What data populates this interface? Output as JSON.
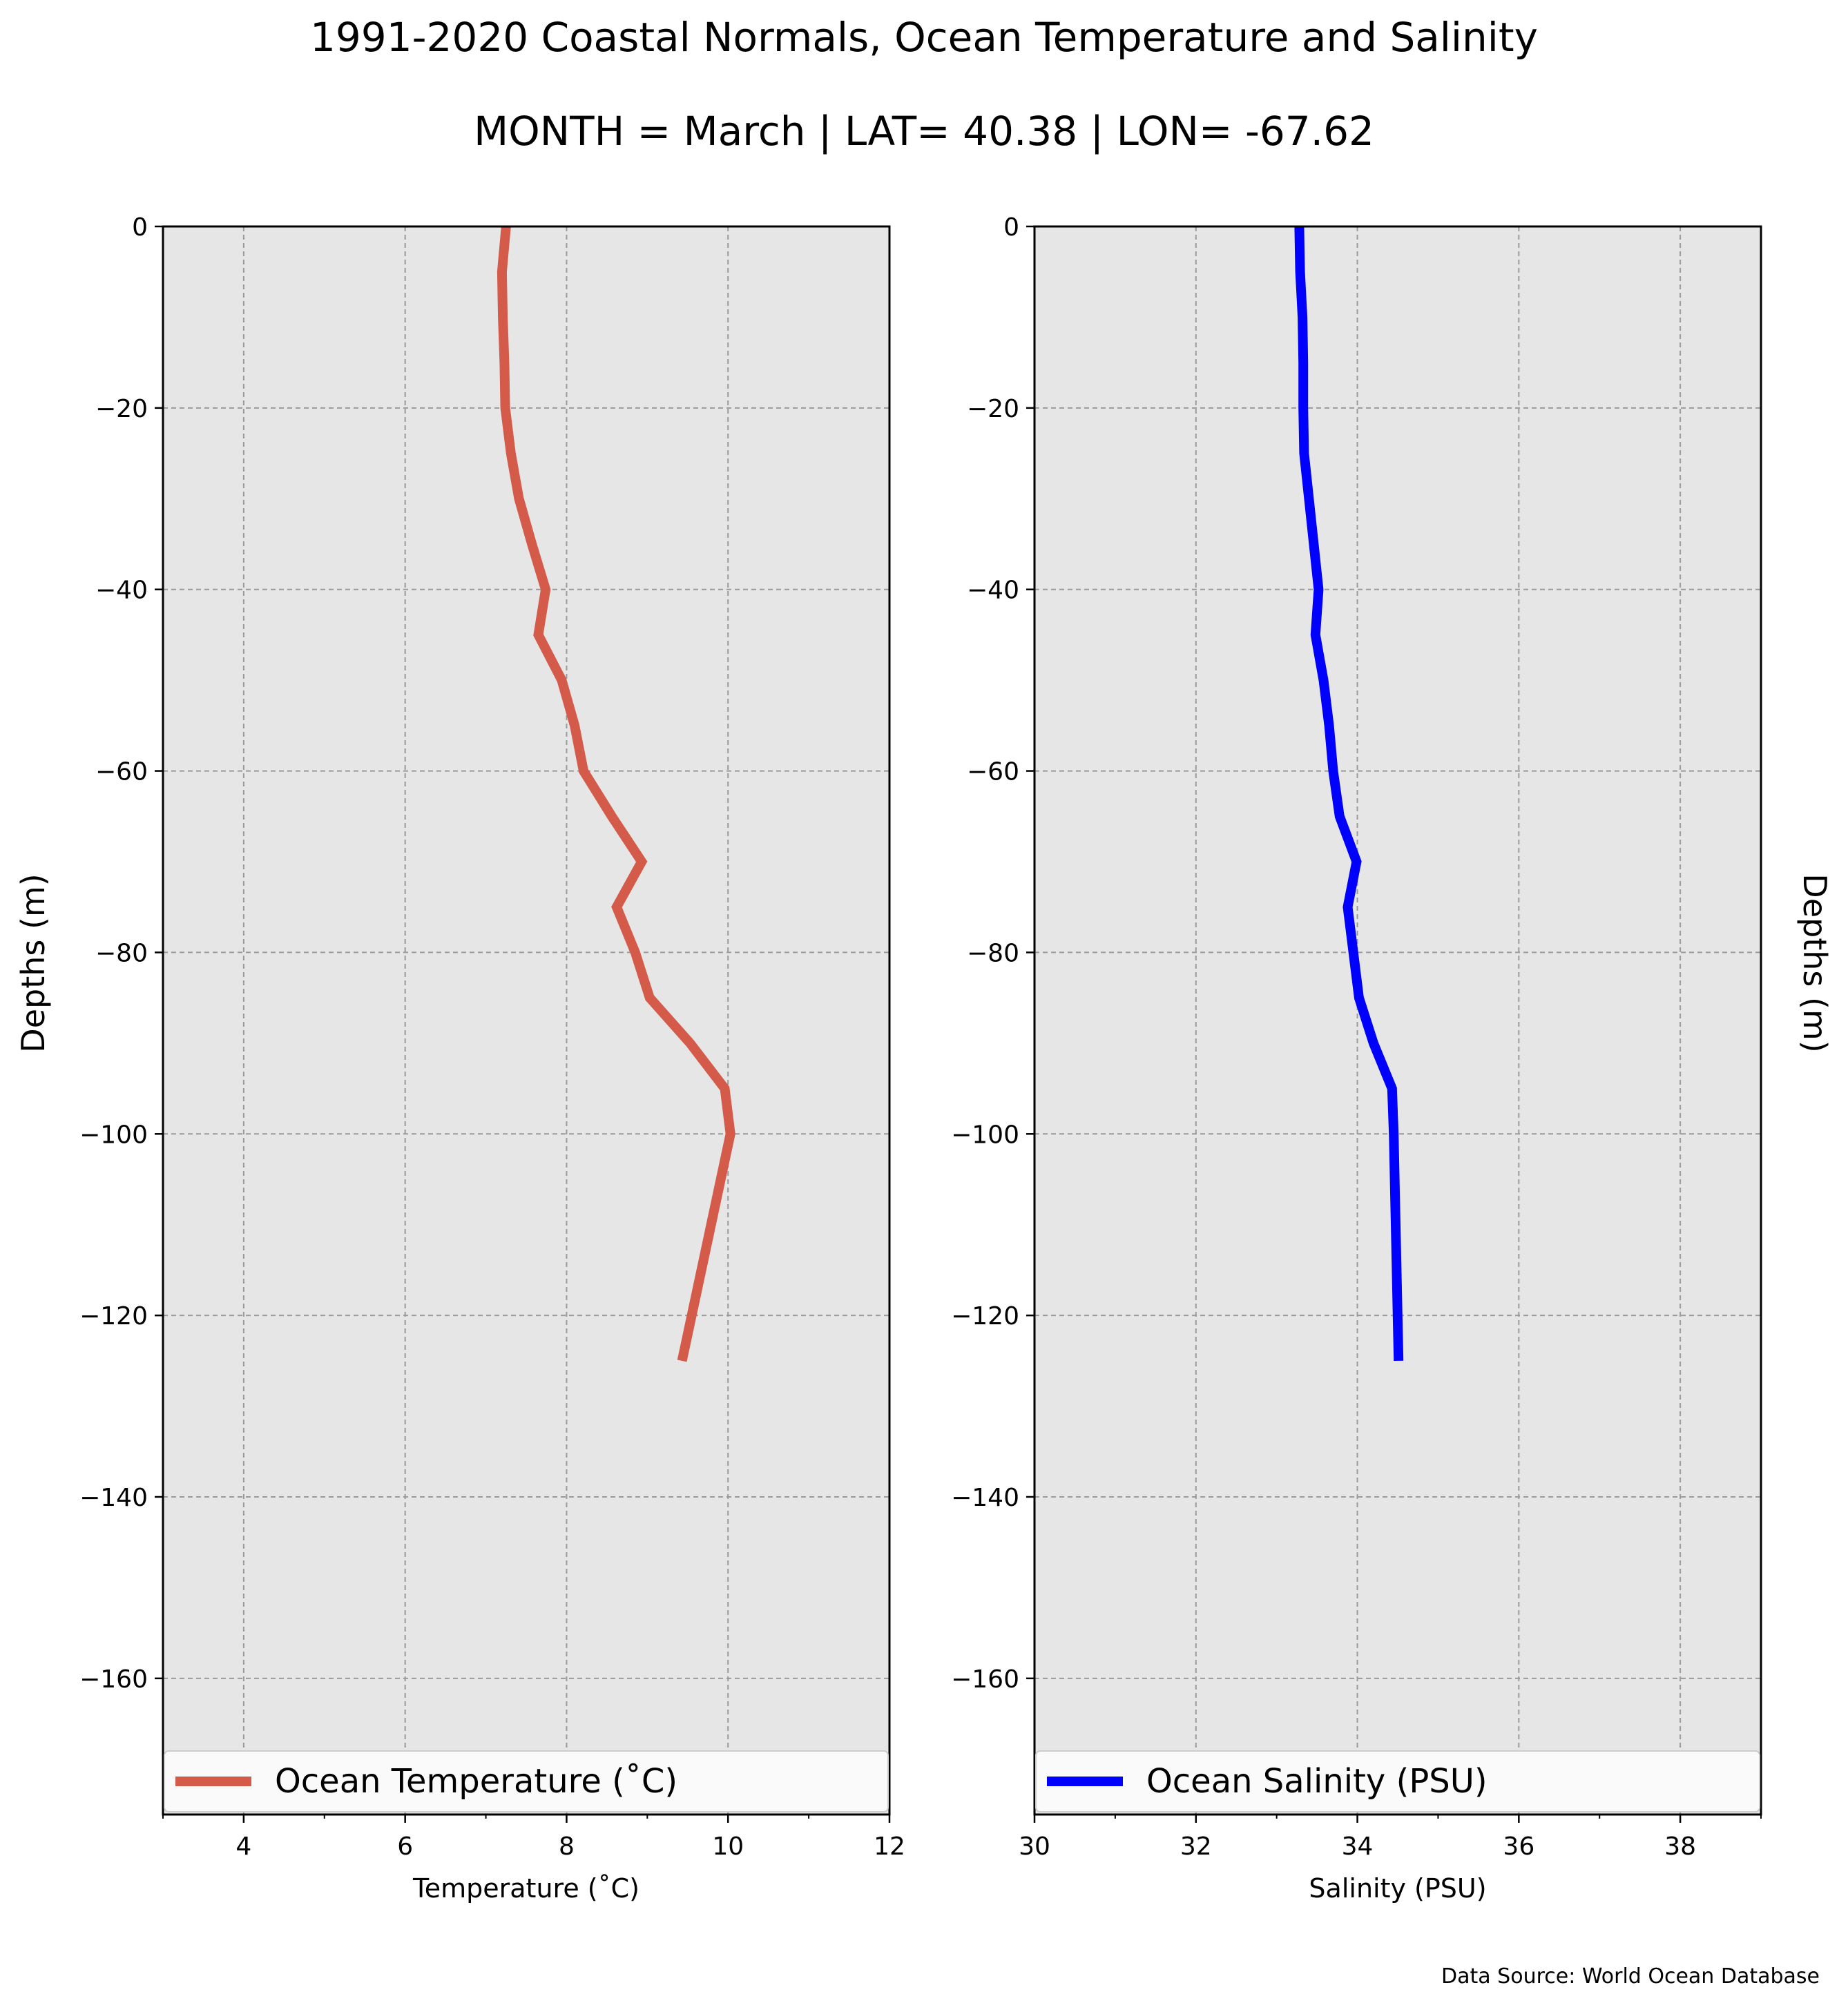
{
  "title": "1991-2020 Coastal Normals, Ocean Temperature and Salinity",
  "subtitle": "MONTH = March | LAT= 40.38 | LON= -67.62",
  "source": "Data Source: World Ocean Database",
  "colors": {
    "plot_background": "#e6e6e6",
    "grid": "#9a9a9a",
    "temperature_line": "#d45a4a",
    "salinity_line": "#0000ff"
  },
  "chart_data": [
    {
      "type": "line",
      "name": "temperature",
      "series": [
        {
          "name": "Ocean Temperature ($^\\circ$C)",
          "legend_label": "Ocean Temperature (˚C)",
          "x": [
            7.25,
            7.2,
            7.21,
            7.23,
            7.24,
            7.24,
            7.31,
            7.41,
            7.57,
            7.74,
            7.65,
            7.94,
            8.1,
            8.21,
            8.56,
            8.93,
            8.62,
            8.85,
            9.03,
            9.53,
            9.96,
            10.03,
            9.43
          ],
          "y": [
            0,
            -5,
            -10,
            -15,
            -20,
            -20,
            -25,
            -30,
            -35,
            -40,
            -45,
            -50,
            -55,
            -60,
            -65,
            -70,
            -75,
            -80,
            -85,
            -90,
            -95,
            -100,
            -125
          ]
        }
      ],
      "xlabel": "Temperature (˚C)",
      "ylabel": "Depths (m)",
      "xlim": [
        3,
        12
      ],
      "ylim": [
        -175,
        0
      ],
      "xticks": [
        4,
        6,
        8,
        10,
        12
      ],
      "xtick_labels": [
        "4",
        "6",
        "8",
        "10",
        "12"
      ],
      "yticks": [
        0,
        -20,
        -40,
        -60,
        -80,
        -100,
        -120,
        -140,
        -160
      ],
      "ytick_labels": [
        "0",
        "−20",
        "−40",
        "−60",
        "−80",
        "−100",
        "−120",
        "−140",
        "−160"
      ],
      "grid": true,
      "legend_placement": "lower center"
    },
    {
      "type": "line",
      "name": "salinity",
      "series": [
        {
          "name": "Ocean Salinity (PSU)",
          "legend_label": "Ocean Salinity (PSU)",
          "x": [
            33.28,
            33.29,
            33.32,
            33.33,
            33.33,
            33.33,
            33.34,
            33.4,
            33.46,
            33.52,
            33.48,
            33.58,
            33.65,
            33.7,
            33.78,
            33.99,
            33.88,
            33.95,
            34.02,
            34.2,
            34.43,
            34.45,
            34.51
          ],
          "y": [
            0,
            -5,
            -10,
            -15,
            -20,
            -20,
            -25,
            -30,
            -35,
            -40,
            -45,
            -50,
            -55,
            -60,
            -65,
            -70,
            -75,
            -80,
            -85,
            -90,
            -95,
            -100,
            -125
          ]
        }
      ],
      "xlabel": "Salinity (PSU)",
      "ylabel": "Depths (m)",
      "xlim": [
        30,
        39
      ],
      "ylim": [
        -175,
        0
      ],
      "xticks": [
        30,
        32,
        34,
        36,
        38
      ],
      "xtick_labels": [
        "30",
        "32",
        "34",
        "36",
        "38"
      ],
      "yticks": [
        0,
        -20,
        -40,
        -60,
        -80,
        -100,
        -120,
        -140,
        -160
      ],
      "ytick_labels": [
        "0",
        "−20",
        "−40",
        "−60",
        "−80",
        "−100",
        "−120",
        "−140",
        "−160"
      ],
      "grid": true,
      "legend_placement": "lower center"
    }
  ]
}
